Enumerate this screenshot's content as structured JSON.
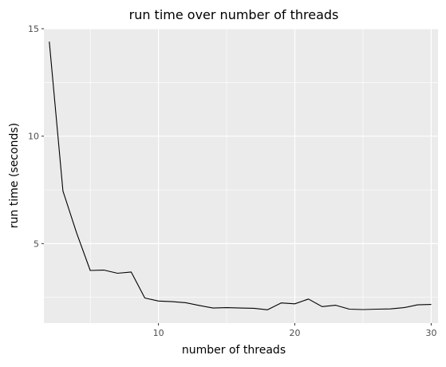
{
  "chart_data": {
    "type": "line",
    "title": "run time over number of threads",
    "xlabel": "number of threads",
    "ylabel": "run time (seconds)",
    "xlim": [
      1.6,
      30.5
    ],
    "ylim": [
      1.3,
      15
    ],
    "x_ticks": [
      10,
      20,
      30
    ],
    "x_tick_labels": [
      "10",
      "20",
      "30"
    ],
    "x_minor_ticks": [
      5,
      15,
      25
    ],
    "y_ticks": [
      5,
      10,
      15
    ],
    "y_tick_labels": [
      "5",
      "10",
      "15"
    ],
    "y_minor_ticks": [
      2.5,
      7.5,
      12.5
    ],
    "grid": true,
    "legend": "none",
    "colors": {
      "panel_background": "#ebebeb",
      "grid": "#ffffff",
      "line": "#000000",
      "tick_label": "#4d4d4d",
      "axis_tick": "#333333"
    },
    "series": [
      {
        "x": [
          2,
          3,
          4,
          5,
          6,
          7,
          8,
          9,
          10,
          11,
          12,
          13,
          14,
          15,
          16,
          17,
          18,
          19,
          20,
          21,
          22,
          23,
          24,
          25,
          26,
          27,
          28,
          29,
          30
        ],
        "values": [
          14.4,
          7.45,
          5.5,
          3.75,
          3.77,
          3.62,
          3.68,
          2.47,
          2.33,
          2.3,
          2.25,
          2.12,
          2.0,
          2.02,
          2.0,
          1.99,
          1.92,
          2.24,
          2.2,
          2.42,
          2.07,
          2.13,
          1.95,
          1.93,
          1.95,
          1.96,
          2.02,
          2.15,
          2.17
        ]
      }
    ]
  }
}
